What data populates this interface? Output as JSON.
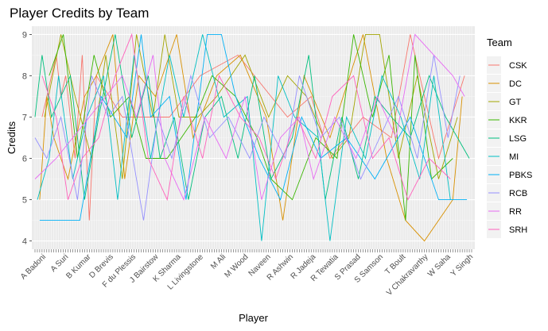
{
  "chart_data": {
    "type": "line",
    "title": "Player Credits by Team",
    "xlabel": "Player",
    "ylabel": "Credits",
    "ylim": [
      3.8,
      9.2
    ],
    "yticks": [
      4,
      5,
      6,
      7,
      8,
      9
    ],
    "grid": true,
    "legend_position": "right",
    "legend_title": "Team",
    "visible_x_labels": [
      "A Badoni",
      "A Suri",
      "B Kumar",
      "D Brevis",
      "F du Plessis",
      "J Bairstow",
      "K Sharma",
      "L Livingstone",
      "M Ali",
      "M Wood",
      "Naveen",
      "R Ashwin",
      "R Jadeja",
      "R Tewatia",
      "S Prasad",
      "S Samson",
      "T Boult",
      "V Chakravarthy",
      "W Saha",
      "Y Singh"
    ],
    "series": [
      {
        "name": "CSK",
        "color": "#F8766D",
        "values": [
          [
            4,
            7
          ],
          [
            10,
            8.5
          ],
          [
            12,
            7.5
          ],
          [
            14,
            8
          ],
          [
            18,
            6
          ],
          [
            21,
            8.5
          ],
          [
            24,
            4.5
          ],
          [
            27,
            8
          ],
          [
            38,
            7
          ],
          [
            58,
            7
          ],
          [
            71,
            8
          ],
          [
            87,
            8.5
          ],
          [
            108,
            7
          ],
          [
            118,
            7.5
          ],
          [
            126,
            6
          ],
          [
            140,
            7
          ],
          [
            152,
            6.5
          ],
          [
            160,
            9
          ],
          [
            172,
            6
          ],
          [
            183,
            8
          ]
        ]
      },
      {
        "name": "DC",
        "color": "#D89000",
        "values": [
          [
            3,
            5
          ],
          [
            6,
            7.5
          ],
          [
            9,
            6.5
          ],
          [
            15,
            5.5
          ],
          [
            22,
            7.5
          ],
          [
            27,
            8
          ],
          [
            34,
            9
          ],
          [
            39,
            5.5
          ],
          [
            45,
            8
          ],
          [
            52,
            7.5
          ],
          [
            61,
            9
          ],
          [
            68,
            6.5
          ],
          [
            78,
            8
          ],
          [
            88,
            8.5
          ],
          [
            99,
            7
          ],
          [
            106,
            4.5
          ],
          [
            115,
            8
          ],
          [
            126,
            6.5
          ],
          [
            140,
            9
          ],
          [
            150,
            6
          ],
          [
            158,
            4.5
          ],
          [
            166,
            4
          ],
          [
            178,
            5
          ],
          [
            182,
            7.5
          ]
        ]
      },
      {
        "name": "GT",
        "color": "#A3A500",
        "values": [
          [
            5,
            7
          ],
          [
            12,
            9
          ],
          [
            18,
            7.5
          ],
          [
            25,
            6
          ],
          [
            31,
            8.5
          ],
          [
            38,
            5.5
          ],
          [
            44,
            9
          ],
          [
            51,
            7
          ],
          [
            56,
            9
          ],
          [
            62,
            7
          ],
          [
            70,
            7
          ],
          [
            78,
            7.5
          ],
          [
            90,
            8.5
          ],
          [
            100,
            7
          ],
          [
            108,
            8
          ],
          [
            116,
            7.5
          ],
          [
            127,
            6
          ],
          [
            134,
            6.5
          ],
          [
            141,
            9
          ],
          [
            147,
            9
          ],
          [
            155,
            6
          ],
          [
            163,
            8
          ],
          [
            172,
            5.5
          ],
          [
            180,
            7
          ]
        ]
      },
      {
        "name": "KKR",
        "color": "#39B600",
        "values": [
          [
            7,
            8
          ],
          [
            13,
            9
          ],
          [
            19,
            6
          ],
          [
            26,
            8.5
          ],
          [
            33,
            7
          ],
          [
            41,
            7.5
          ],
          [
            48,
            6
          ],
          [
            57,
            6
          ],
          [
            63,
            6.5
          ],
          [
            69,
            7
          ],
          [
            76,
            8
          ],
          [
            86,
            7.5
          ],
          [
            95,
            6.5
          ],
          [
            101,
            5.5
          ],
          [
            110,
            5
          ],
          [
            120,
            6.5
          ],
          [
            129,
            6
          ],
          [
            136,
            9
          ],
          [
            144,
            7
          ],
          [
            151,
            8.5
          ],
          [
            158,
            4.5
          ],
          [
            162,
            8.5
          ],
          [
            169,
            5.5
          ],
          [
            178,
            6
          ]
        ]
      },
      {
        "name": "LSG",
        "color": "#00BF7D",
        "values": [
          [
            1,
            7
          ],
          [
            4,
            8.5
          ],
          [
            8,
            7
          ],
          [
            16,
            8
          ],
          [
            22,
            5
          ],
          [
            28,
            7
          ],
          [
            35,
            9
          ],
          [
            42,
            6.5
          ],
          [
            49,
            8
          ],
          [
            54,
            6
          ],
          [
            60,
            7
          ],
          [
            66,
            5
          ],
          [
            73,
            7
          ],
          [
            80,
            7.5
          ],
          [
            87,
            6
          ],
          [
            94,
            8
          ],
          [
            101,
            5.5
          ],
          [
            110,
            6.5
          ],
          [
            117,
            8.5
          ],
          [
            124,
            5
          ],
          [
            131,
            7
          ],
          [
            138,
            5.5
          ],
          [
            145,
            7.5
          ],
          [
            152,
            7
          ],
          [
            160,
            6.5
          ],
          [
            168,
            8
          ],
          [
            175,
            7
          ],
          [
            185,
            6
          ]
        ]
      },
      {
        "name": "MI",
        "color": "#00BFC4",
        "values": [
          [
            2,
            5
          ],
          [
            7,
            6
          ],
          [
            11,
            8
          ],
          [
            17,
            5.5
          ],
          [
            23,
            7
          ],
          [
            30,
            8
          ],
          [
            36,
            5
          ],
          [
            43,
            8.5
          ],
          [
            50,
            6
          ],
          [
            58,
            8.5
          ],
          [
            64,
            7
          ],
          [
            72,
            9
          ],
          [
            81,
            7
          ],
          [
            91,
            7.5
          ],
          [
            97,
            4
          ],
          [
            104,
            8
          ],
          [
            111,
            7
          ],
          [
            121,
            6.5
          ],
          [
            126,
            4
          ],
          [
            133,
            7
          ],
          [
            141,
            6
          ],
          [
            148,
            8
          ],
          [
            156,
            7
          ],
          [
            164,
            5.5
          ],
          [
            170,
            8
          ],
          [
            177,
            5
          ]
        ]
      },
      {
        "name": "PBKS",
        "color": "#00B0F6",
        "values": [
          [
            3,
            4.5
          ],
          [
            20,
            4.5
          ],
          [
            29,
            7.5
          ],
          [
            40,
            6.5
          ],
          [
            46,
            9
          ],
          [
            50,
            7
          ],
          [
            58,
            7.5
          ],
          [
            65,
            5
          ],
          [
            74,
            9
          ],
          [
            80,
            9
          ],
          [
            86,
            7.5
          ],
          [
            96,
            6
          ],
          [
            105,
            5
          ],
          [
            114,
            7
          ],
          [
            122,
            6
          ],
          [
            133,
            6.5
          ],
          [
            145,
            5.5
          ],
          [
            160,
            7
          ],
          [
            172,
            5
          ],
          [
            184,
            5
          ]
        ]
      },
      {
        "name": "RCB",
        "color": "#9590FF",
        "values": [
          [
            1,
            6.5
          ],
          [
            6,
            6
          ],
          [
            12,
            7
          ],
          [
            19,
            5
          ],
          [
            25,
            8
          ],
          [
            32,
            7
          ],
          [
            38,
            7.5
          ],
          [
            47,
            4.5
          ],
          [
            53,
            7
          ],
          [
            59,
            6
          ],
          [
            67,
            8
          ],
          [
            75,
            6.5
          ],
          [
            83,
            7
          ],
          [
            92,
            6
          ],
          [
            98,
            7
          ],
          [
            107,
            6
          ],
          [
            113,
            8
          ],
          [
            122,
            6.5
          ],
          [
            130,
            7
          ],
          [
            139,
            5.5
          ],
          [
            147,
            6.5
          ],
          [
            155,
            7.5
          ],
          [
            163,
            6
          ],
          [
            170,
            8.5
          ],
          [
            176,
            6.5
          ],
          [
            181,
            8
          ]
        ]
      },
      {
        "name": "RR",
        "color": "#E76BF3",
        "values": [
          [
            1,
            5.5
          ],
          [
            10,
            6
          ],
          [
            17,
            6.5
          ],
          [
            24,
            7
          ],
          [
            31,
            7.5
          ],
          [
            38,
            8
          ],
          [
            44,
            7
          ],
          [
            51,
            8.5
          ],
          [
            56,
            6
          ],
          [
            64,
            5
          ],
          [
            73,
            7
          ],
          [
            82,
            6
          ],
          [
            90,
            7.5
          ],
          [
            97,
            5
          ],
          [
            105,
            6.5
          ],
          [
            113,
            7
          ],
          [
            119,
            5.5
          ],
          [
            128,
            7
          ],
          [
            137,
            6
          ],
          [
            146,
            7.5
          ],
          [
            154,
            6.5
          ],
          [
            162,
            9
          ],
          [
            170,
            8.5
          ],
          [
            178,
            8
          ],
          [
            183,
            7.5
          ]
        ]
      },
      {
        "name": "SRH",
        "color": "#FF62BC",
        "values": [
          [
            4,
            8
          ],
          [
            10,
            7
          ],
          [
            15,
            5
          ],
          [
            21,
            6
          ],
          [
            28,
            6.5
          ],
          [
            35,
            8
          ],
          [
            42,
            9
          ],
          [
            49,
            6
          ],
          [
            57,
            5
          ],
          [
            64,
            7.5
          ],
          [
            72,
            6
          ],
          [
            79,
            8
          ],
          [
            88,
            7
          ],
          [
            96,
            6.5
          ],
          [
            103,
            5.5
          ],
          [
            112,
            7
          ],
          [
            120,
            6
          ],
          [
            127,
            7.5
          ],
          [
            136,
            8
          ],
          [
            144,
            6
          ],
          [
            151,
            6.5
          ],
          [
            159,
            5
          ],
          [
            168,
            6
          ],
          [
            177,
            5.5
          ]
        ]
      }
    ]
  }
}
